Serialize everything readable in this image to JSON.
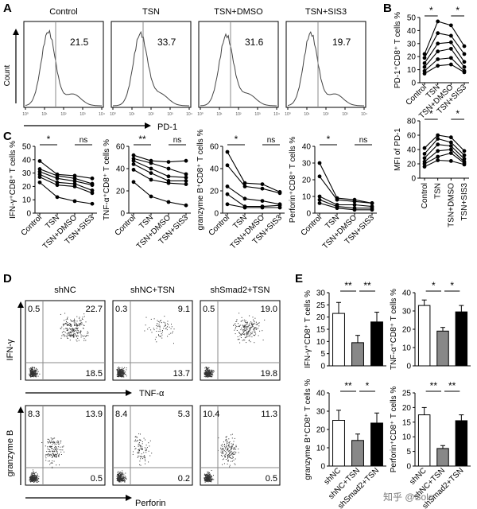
{
  "panels": {
    "A": "A",
    "B": "B",
    "C": "C",
    "D": "D",
    "E": "E"
  },
  "panelA": {
    "plots": [
      {
        "title": "Control",
        "value": "21.5"
      },
      {
        "title": "TSN",
        "value": "33.7"
      },
      {
        "title": "TSN+DMSO",
        "value": "31.6"
      },
      {
        "title": "TSN+SIS3",
        "value": "19.7"
      }
    ],
    "ylabel": "Count",
    "xlabel": "PD-1",
    "xticks": [
      "10⁰",
      "10¹",
      "10²",
      "10³",
      "10⁴"
    ]
  },
  "panelD": {
    "columns": [
      "shNC",
      "shNC+TSN",
      "shSmad2+TSN"
    ],
    "row1": {
      "ylabel": "IFN-γ",
      "xlabel": "TNF-α",
      "quadrants": [
        {
          "ul": "0.5",
          "ur": "22.7",
          "lr": "18.5"
        },
        {
          "ul": "0.3",
          "ur": "9.1",
          "lr": "13.7"
        },
        {
          "ul": "0.5",
          "ur": "19.0",
          "lr": "19.8"
        }
      ]
    },
    "row2": {
      "ylabel": "granzyme B",
      "xlabel": "Perforin",
      "quadrants": [
        {
          "ul": "8.3",
          "ur": "13.9",
          "lr": "0.5"
        },
        {
          "ul": "8.4",
          "ur": "5.3",
          "lr": "0.2"
        },
        {
          "ul": "10.4",
          "ur": "11.3",
          "lr": "0.5"
        }
      ]
    }
  },
  "watermark": "知乎 @Solo",
  "chart_data": [
    {
      "id": "B1",
      "type": "line",
      "ylabel": "PD-1⁺CD8⁺ T cells %",
      "ylim": [
        0,
        50
      ],
      "yticks": [
        0,
        10,
        20,
        30,
        40,
        50
      ],
      "categories": [
        "Control",
        "TSN",
        "TSN+DMSO",
        "TSN+SIS3"
      ],
      "series": [
        {
          "name": "1",
          "values": [
            22,
            47,
            44,
            28
          ]
        },
        {
          "name": "2",
          "values": [
            19,
            38,
            36,
            22
          ]
        },
        {
          "name": "3",
          "values": [
            15,
            30,
            31,
            16
          ]
        },
        {
          "name": "4",
          "values": [
            12,
            24,
            26,
            12
          ]
        },
        {
          "name": "5",
          "values": [
            9,
            18,
            19,
            9
          ]
        },
        {
          "name": "6",
          "values": [
            7,
            13,
            14,
            8
          ]
        }
      ],
      "sig": [
        {
          "from": 0,
          "to": 1,
          "label": "*"
        },
        {
          "from": 2,
          "to": 3,
          "label": "*"
        }
      ]
    },
    {
      "id": "B2",
      "type": "line",
      "ylabel": "MFI of PD-1",
      "ylim": [
        0,
        80
      ],
      "yticks": [
        0,
        20,
        40,
        60,
        80
      ],
      "categories": [
        "Control",
        "TSN",
        "TSN+DMSO",
        "TSN+SIS3"
      ],
      "series": [
        {
          "name": "1",
          "values": [
            42,
            60,
            57,
            38
          ]
        },
        {
          "name": "2",
          "values": [
            34,
            55,
            50,
            32
          ]
        },
        {
          "name": "3",
          "values": [
            28,
            47,
            45,
            27
          ]
        },
        {
          "name": "4",
          "values": [
            23,
            38,
            40,
            23
          ]
        },
        {
          "name": "5",
          "values": [
            20,
            30,
            35,
            21
          ]
        },
        {
          "name": "6",
          "values": [
            16,
            25,
            24,
            19
          ]
        }
      ],
      "sig": [
        {
          "from": 0,
          "to": 1,
          "label": "*"
        },
        {
          "from": 2,
          "to": 3,
          "label": "*"
        }
      ]
    },
    {
      "id": "C1",
      "type": "line",
      "ylabel": "IFN-γ⁺CD8⁺ T cells %",
      "ylim": [
        0,
        50
      ],
      "yticks": [
        0,
        10,
        20,
        30,
        40,
        50
      ],
      "categories": [
        "Control",
        "TSN",
        "TSN+DMSO",
        "TSN+SIS3"
      ],
      "series": [
        {
          "name": "1",
          "values": [
            39,
            29,
            28,
            26
          ]
        },
        {
          "name": "2",
          "values": [
            33,
            28,
            26,
            22
          ]
        },
        {
          "name": "3",
          "values": [
            31,
            26,
            24,
            21
          ]
        },
        {
          "name": "4",
          "values": [
            29,
            23,
            22,
            17
          ]
        },
        {
          "name": "5",
          "values": [
            27,
            21,
            20,
            15
          ]
        },
        {
          "name": "6",
          "values": [
            23,
            12,
            9,
            7
          ]
        }
      ],
      "sig": [
        {
          "from": 0,
          "to": 1,
          "label": "*"
        },
        {
          "from": 2,
          "to": 3,
          "label": "ns"
        }
      ]
    },
    {
      "id": "C2",
      "type": "line",
      "ylabel": "TNF-α⁺CD8⁺ T cells %",
      "ylim": [
        0,
        60
      ],
      "yticks": [
        0,
        20,
        40,
        60
      ],
      "categories": [
        "Control",
        "TSN",
        "TSN+DMSO",
        "TSN+SIS3"
      ],
      "series": [
        {
          "name": "1",
          "values": [
            52,
            47,
            46,
            47
          ]
        },
        {
          "name": "2",
          "values": [
            49,
            45,
            40,
            35
          ]
        },
        {
          "name": "3",
          "values": [
            47,
            40,
            33,
            32
          ]
        },
        {
          "name": "4",
          "values": [
            44,
            36,
            29,
            29
          ]
        },
        {
          "name": "5",
          "values": [
            39,
            30,
            27,
            26
          ]
        },
        {
          "name": "6",
          "values": [
            28,
            15,
            10,
            7
          ]
        }
      ],
      "sig": [
        {
          "from": 0,
          "to": 1,
          "label": "**"
        },
        {
          "from": 2,
          "to": 3,
          "label": "ns"
        }
      ]
    },
    {
      "id": "C3",
      "type": "line",
      "ylabel": "granzyme B⁺CD8⁺ T cells %",
      "ylim": [
        0,
        60
      ],
      "yticks": [
        0,
        20,
        40,
        60
      ],
      "categories": [
        "Control",
        "TSN",
        "TSN+DMSO",
        "TSN+SIS3"
      ],
      "series": [
        {
          "name": "1",
          "values": [
            55,
            27,
            26,
            19
          ]
        },
        {
          "name": "2",
          "values": [
            43,
            24,
            22,
            18
          ]
        },
        {
          "name": "3",
          "values": [
            24,
            13,
            11,
            8
          ]
        },
        {
          "name": "4",
          "values": [
            17,
            6,
            6,
            7
          ]
        },
        {
          "name": "5",
          "values": [
            8,
            5,
            5,
            5
          ]
        }
      ],
      "sig": [
        {
          "from": 0,
          "to": 1,
          "label": "*"
        },
        {
          "from": 2,
          "to": 3,
          "label": "ns"
        }
      ]
    },
    {
      "id": "C4",
      "type": "line",
      "ylabel": "Perforin⁺CD8⁺ T cells %",
      "ylim": [
        0,
        40
      ],
      "yticks": [
        0,
        10,
        20,
        30,
        40
      ],
      "categories": [
        "Control",
        "TSN",
        "TSN+DMSO",
        "TSN+SIS3"
      ],
      "series": [
        {
          "name": "1",
          "values": [
            30,
            9,
            8,
            6
          ]
        },
        {
          "name": "2",
          "values": [
            22,
            8,
            7,
            6
          ]
        },
        {
          "name": "3",
          "values": [
            10,
            5,
            5,
            4
          ]
        },
        {
          "name": "4",
          "values": [
            8,
            4,
            3,
            3
          ]
        },
        {
          "name": "5",
          "values": [
            6,
            3,
            2,
            2
          ]
        }
      ],
      "sig": [
        {
          "from": 0,
          "to": 1,
          "label": "*"
        },
        {
          "from": 2,
          "to": 3,
          "label": "ns"
        }
      ]
    },
    {
      "id": "E1",
      "type": "bar",
      "ylabel": "IFN-γ⁺CD8⁺ T cells %",
      "ylim": [
        0,
        30
      ],
      "yticks": [
        0,
        5,
        10,
        15,
        20,
        25,
        30
      ],
      "categories": [
        "shNC",
        "shNC+TSN",
        "shSmad2+TSN"
      ],
      "values": [
        21.5,
        9.5,
        18
      ],
      "errors": [
        4.5,
        3,
        4
      ],
      "colors": [
        "#ffffff",
        "#888888",
        "#000000"
      ],
      "sig": [
        {
          "from": 0,
          "to": 1,
          "label": "**"
        },
        {
          "from": 1,
          "to": 2,
          "label": "**"
        }
      ]
    },
    {
      "id": "E2",
      "type": "bar",
      "ylabel": "TNF-α⁺CD8⁺ T cells %",
      "ylim": [
        0,
        40
      ],
      "yticks": [
        0,
        10,
        20,
        30,
        40
      ],
      "categories": [
        "shNC",
        "shNC+TSN",
        "shSmad2+TSN"
      ],
      "values": [
        33,
        19,
        29.5
      ],
      "errors": [
        3,
        2,
        3.5
      ],
      "colors": [
        "#ffffff",
        "#888888",
        "#000000"
      ],
      "sig": [
        {
          "from": 0,
          "to": 1,
          "label": "*"
        },
        {
          "from": 1,
          "to": 2,
          "label": "*"
        }
      ]
    },
    {
      "id": "E3",
      "type": "bar",
      "ylabel": "granzyme B⁺CD8⁺ T cells %",
      "ylim": [
        0,
        40
      ],
      "yticks": [
        0,
        10,
        20,
        30,
        40
      ],
      "categories": [
        "shNC",
        "shNC+TSN",
        "shSmad2+TSN"
      ],
      "values": [
        25,
        14,
        23.5
      ],
      "errors": [
        5.5,
        3.5,
        5.5
      ],
      "colors": [
        "#ffffff",
        "#888888",
        "#000000"
      ],
      "sig": [
        {
          "from": 0,
          "to": 1,
          "label": "**"
        },
        {
          "from": 1,
          "to": 2,
          "label": "*"
        }
      ]
    },
    {
      "id": "E4",
      "type": "bar",
      "ylabel": "Perforin⁺CD8⁺ T cells %",
      "ylim": [
        0,
        25
      ],
      "yticks": [
        0,
        5,
        10,
        15,
        20,
        25
      ],
      "categories": [
        "shNC",
        "shNC+TSN",
        "shSmad2+TSN"
      ],
      "values": [
        17.5,
        6,
        15.5
      ],
      "errors": [
        2.5,
        1,
        2
      ],
      "colors": [
        "#ffffff",
        "#888888",
        "#000000"
      ],
      "sig": [
        {
          "from": 0,
          "to": 1,
          "label": "**"
        },
        {
          "from": 1,
          "to": 2,
          "label": "**"
        }
      ]
    }
  ]
}
